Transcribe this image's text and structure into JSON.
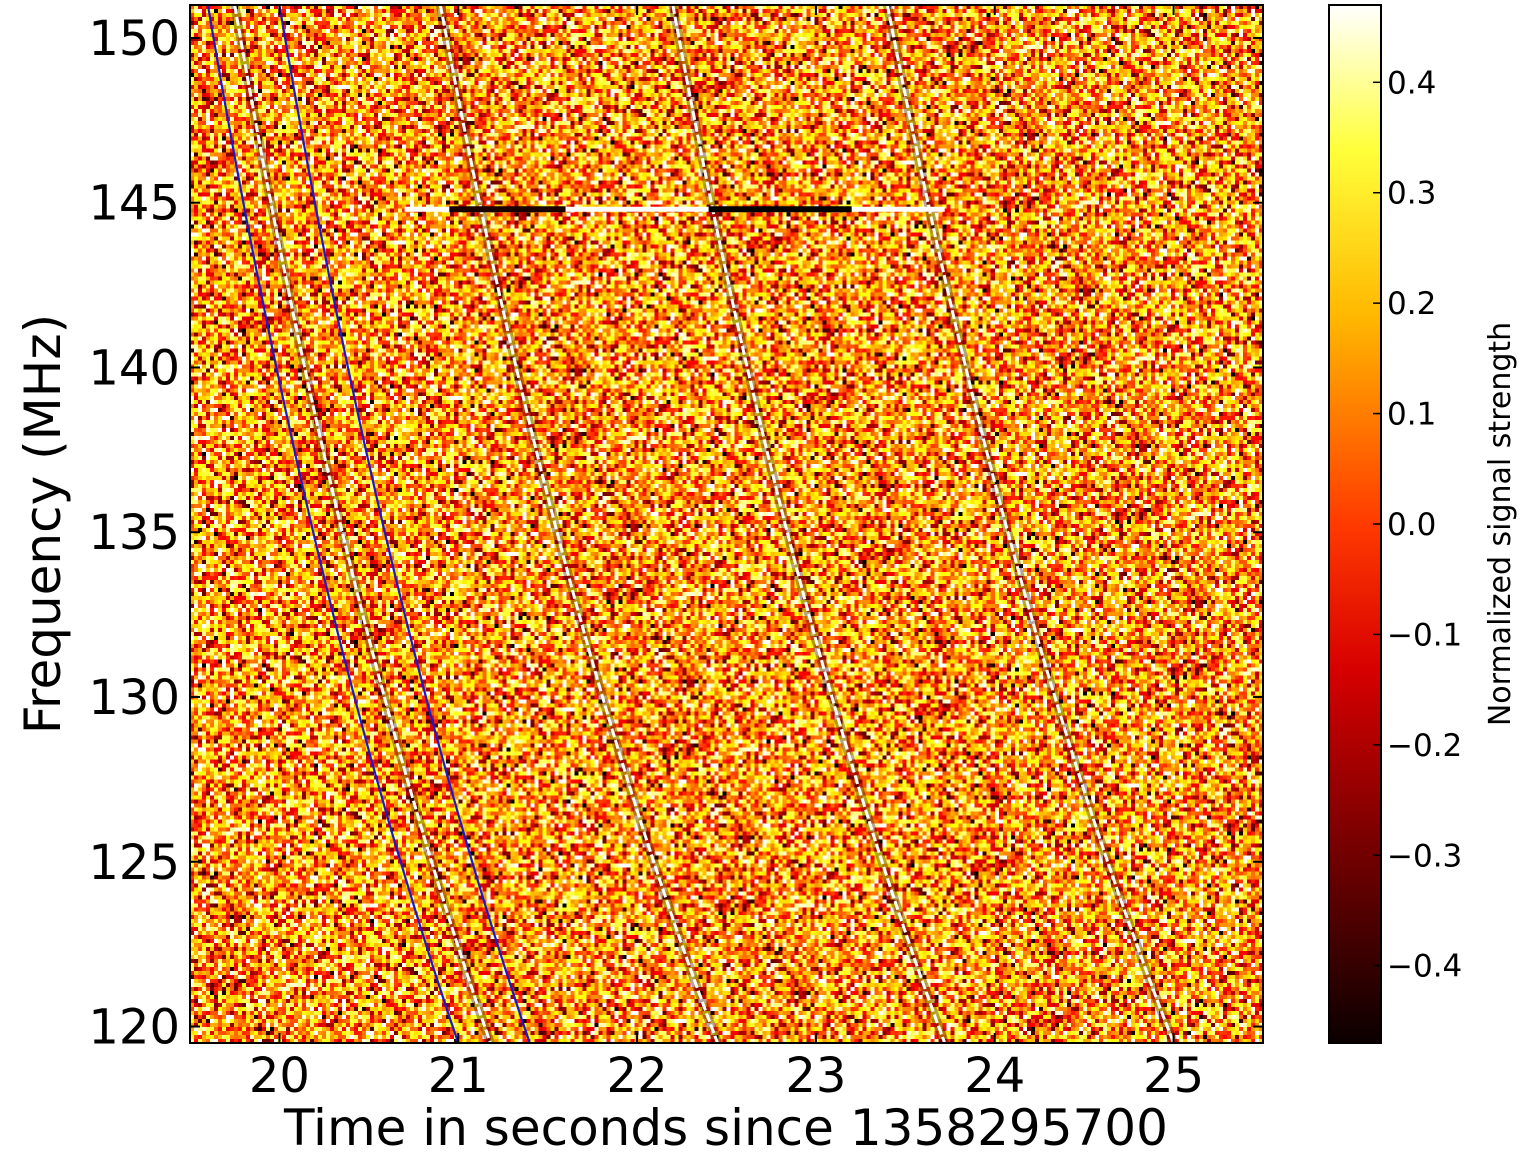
{
  "chart_data": {
    "type": "heatmap",
    "title": "",
    "xlabel": "Time in seconds since 1358295700",
    "ylabel": "Frequency (MHz)",
    "xlim": [
      19.5,
      25.5
    ],
    "ylim": [
      119.5,
      151
    ],
    "xticks": [
      "20",
      "21",
      "22",
      "23",
      "24",
      "25"
    ],
    "yticks": [
      "120",
      "125",
      "130",
      "135",
      "140",
      "145",
      "150"
    ],
    "colormap": "hot",
    "colorbar": {
      "label": "Normalized signal strength",
      "range": [
        -0.47,
        0.47
      ],
      "ticks": [
        "0.4",
        "0.3",
        "0.2",
        "0.1",
        "0.0",
        "−0.1",
        "−0.2",
        "−0.3",
        "−0.4"
      ]
    },
    "pulse_tracks": [
      {
        "t_at_151MHz": 19.75,
        "t_at_119.5MHz": 21.18
      },
      {
        "t_at_151MHz": 20.9,
        "t_at_119.5MHz": 22.45
      },
      {
        "t_at_151MHz": 22.2,
        "t_at_119.5MHz": 23.72
      },
      {
        "t_at_151MHz": 23.4,
        "t_at_119.5MHz": 25.0
      }
    ],
    "model_curves": [
      {
        "color": "#1a1acc",
        "t_at_151MHz": 19.6,
        "t_at_119.5MHz": 21.0
      },
      {
        "color": "#1a1acc",
        "t_at_151MHz": 20.0,
        "t_at_119.5MHz": 21.4
      }
    ],
    "rfi_line": {
      "frequency_mhz": 144.8,
      "t_start": 20.7,
      "t_end": 23.72
    }
  }
}
